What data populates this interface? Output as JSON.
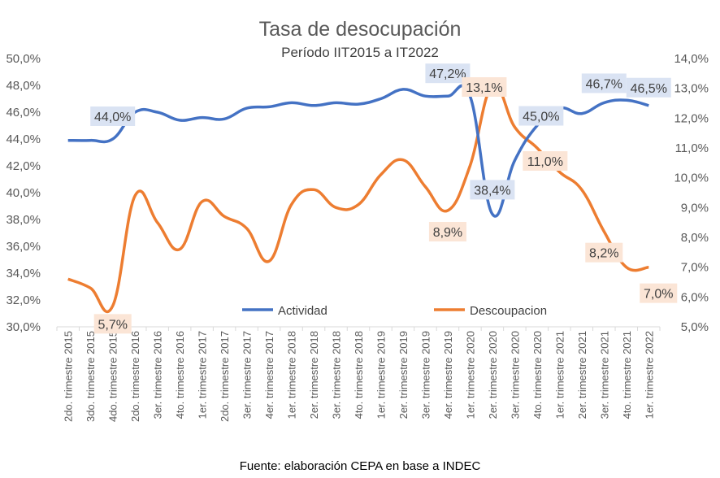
{
  "chart_data": {
    "type": "line",
    "title": "Tasa de desocupación",
    "subtitle": "Período IIT2015 a IT2022",
    "source": "Fuente: elaboración CEPA en base a INDEC",
    "categories": [
      "2do. trimestre 2015",
      "3do. trimestre 2015",
      "4do. trimestre 2015",
      "2do. trimestre 2016",
      "3er. trimestre 2016",
      "4to. trimestre 2016",
      "1er. trimestre 2017",
      "2do. trimestre 2017",
      "3er. trimestre 2017",
      "4er. trimestre 2017",
      "1er. trimestre 2018",
      "2er. trimestre 2018",
      "3er. trimestre 2018",
      "4to. trimestre 2018",
      "1er. trimestre 2019",
      "2er. trimestre 2019",
      "3er. trimestre 2019",
      "4er. trimestre 2019",
      "1er. trimestre 2020",
      "2er. trimestre 2020",
      "3er. trimestre 2020",
      "4to. trimestre 2020",
      "1er. trimestre 2021",
      "2er. trimestre 2021",
      "3er. trimestre 2021",
      "4to. trimestre 2021",
      "1er. trimestre 2022"
    ],
    "y_left": {
      "min": 30,
      "max": 50,
      "step": 2,
      "tick_labels": [
        "30,0%",
        "32,0%",
        "34,0%",
        "36,0%",
        "38,0%",
        "40,0%",
        "42,0%",
        "44,0%",
        "46,0%",
        "48,0%",
        "50,0%"
      ]
    },
    "y_right": {
      "min": 5,
      "max": 14,
      "step": 1,
      "tick_labels": [
        "5,0%",
        "6,0%",
        "7,0%",
        "8,0%",
        "9,0%",
        "10,0%",
        "11,0%",
        "12,0%",
        "13,0%",
        "14,0%"
      ]
    },
    "series": [
      {
        "name": "Actividad",
        "axis": "left",
        "color": "#4472C4",
        "values": [
          43.9,
          43.9,
          44.0,
          46.0,
          46.0,
          45.4,
          45.6,
          45.5,
          46.3,
          46.4,
          46.7,
          46.5,
          46.7,
          46.6,
          47.0,
          47.7,
          47.2,
          47.2,
          47.2,
          38.4,
          42.4,
          45.0,
          46.3,
          45.9,
          46.7,
          46.9,
          46.5
        ],
        "labels": [
          {
            "index": 2,
            "text": "44,0%"
          },
          {
            "index": 17,
            "text": "47,2%"
          },
          {
            "index": 19,
            "text": "38,4%"
          },
          {
            "index": 21,
            "text": "45,0%"
          },
          {
            "index": 24,
            "text": "46,7%"
          },
          {
            "index": 26,
            "text": "46,5%"
          }
        ]
      },
      {
        "name": "Descoupacion",
        "axis": "right",
        "color": "#ED7D31",
        "values": [
          6.6,
          6.3,
          5.7,
          9.4,
          8.5,
          7.6,
          9.2,
          8.7,
          8.3,
          7.2,
          9.1,
          9.6,
          9.0,
          9.1,
          10.1,
          10.6,
          9.7,
          8.9,
          10.4,
          13.1,
          11.7,
          11.0,
          10.2,
          9.6,
          8.2,
          7.0,
          7.0
        ],
        "labels": [
          {
            "index": 2,
            "text": "5,7%"
          },
          {
            "index": 17,
            "text": "8,9%"
          },
          {
            "index": 19,
            "text": "13,1%"
          },
          {
            "index": 21,
            "text": "11,0%"
          },
          {
            "index": 24,
            "text": "8,2%"
          },
          {
            "index": 26,
            "text": "7,0%"
          }
        ]
      }
    ],
    "legend": {
      "position": "inside-bottom"
    },
    "grid": false
  }
}
